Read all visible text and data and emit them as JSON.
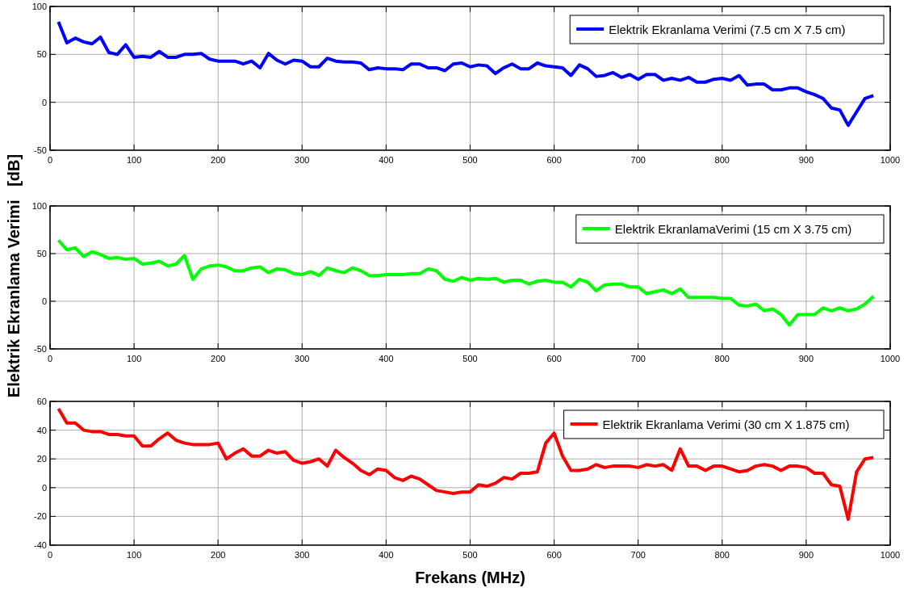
{
  "chart_data": [
    {
      "type": "line",
      "x": [
        10,
        20,
        30,
        40,
        50,
        60,
        70,
        80,
        90,
        100,
        110,
        120,
        130,
        140,
        150,
        160,
        170,
        180,
        190,
        200,
        210,
        220,
        230,
        240,
        250,
        260,
        270,
        280,
        290,
        300,
        310,
        320,
        330,
        340,
        350,
        360,
        370,
        380,
        390,
        400,
        410,
        420,
        430,
        440,
        450,
        460,
        470,
        480,
        490,
        500,
        510,
        520,
        530,
        540,
        550,
        560,
        570,
        580,
        590,
        600,
        610,
        620,
        630,
        640,
        650,
        660,
        670,
        680,
        690,
        700,
        710,
        720,
        730,
        740,
        750,
        760,
        770,
        780,
        790,
        800,
        810,
        820,
        830,
        840,
        850,
        860,
        870,
        880,
        890,
        900,
        910,
        920,
        930,
        940,
        950,
        960,
        970,
        980
      ],
      "series": [
        {
          "name": "Elektrik Ekranlama Verimi (7.5 cm X 7.5 cm)",
          "color": "#0000ff",
          "values": [
            84,
            62,
            67,
            63,
            61,
            68,
            52,
            50,
            60,
            47,
            48,
            47,
            53,
            47,
            47,
            50,
            50,
            51,
            45,
            43,
            43,
            43,
            40,
            43,
            36,
            51,
            44,
            40,
            44,
            43,
            37,
            37,
            46,
            43,
            42,
            42,
            41,
            34,
            36,
            35,
            35,
            34,
            40,
            40,
            36,
            36,
            33,
            40,
            41,
            37,
            39,
            38,
            30,
            36,
            40,
            35,
            35,
            41,
            38,
            37,
            36,
            28,
            39,
            35,
            27,
            28,
            31,
            26,
            29,
            24,
            29,
            29,
            23,
            25,
            23,
            26,
            21,
            21,
            24,
            25,
            23,
            28,
            18,
            19,
            19,
            13,
            13,
            15,
            15,
            11,
            8,
            4,
            -6,
            -8,
            -24,
            -10,
            4,
            7
          ]
        }
      ],
      "xlim": [
        0,
        1000
      ],
      "xticks": [
        0,
        100,
        200,
        300,
        400,
        500,
        600,
        700,
        800,
        900,
        1000
      ],
      "ylim": [
        -50,
        100
      ],
      "yticks": [
        -50,
        0,
        50,
        100
      ],
      "grid": true,
      "legend": "top right",
      "line_style": "solid"
    },
    {
      "type": "line",
      "ylabel": "Elektrik Ekranlama Verimi   [dB]",
      "x": [
        10,
        20,
        30,
        40,
        50,
        60,
        70,
        80,
        90,
        100,
        110,
        120,
        130,
        140,
        150,
        160,
        170,
        180,
        190,
        200,
        210,
        220,
        230,
        240,
        250,
        260,
        270,
        280,
        290,
        300,
        310,
        320,
        330,
        340,
        350,
        360,
        370,
        380,
        390,
        400,
        410,
        420,
        430,
        440,
        450,
        460,
        470,
        480,
        490,
        500,
        510,
        520,
        530,
        540,
        550,
        560,
        570,
        580,
        590,
        600,
        610,
        620,
        630,
        640,
        650,
        660,
        670,
        680,
        690,
        700,
        710,
        720,
        730,
        740,
        750,
        760,
        770,
        780,
        790,
        800,
        810,
        820,
        830,
        840,
        850,
        860,
        870,
        880,
        890,
        900,
        910,
        920,
        930,
        940,
        950,
        960,
        970,
        980
      ],
      "series": [
        {
          "name": "Elektrik EkranlamaVerimi (15 cm X 3.75 cm)",
          "color": "#00ff00",
          "values": [
            64,
            54,
            56,
            47,
            52,
            49,
            45,
            46,
            44,
            45,
            39,
            40,
            42,
            37,
            39,
            48,
            23,
            34,
            37,
            38,
            36,
            32,
            32,
            35,
            36,
            30,
            34,
            33,
            29,
            28,
            31,
            27,
            35,
            32,
            30,
            35,
            32,
            27,
            27,
            28,
            28,
            28,
            29,
            29,
            34,
            32,
            23,
            21,
            25,
            22,
            24,
            23,
            24,
            20,
            22,
            22,
            18,
            21,
            22,
            20,
            20,
            15,
            23,
            20,
            11,
            17,
            18,
            18,
            15,
            15,
            8,
            10,
            12,
            8,
            13,
            4,
            4,
            4,
            4,
            3,
            3,
            -4,
            -5,
            -3,
            -10,
            -8,
            -14,
            -25,
            -14,
            -14,
            -14,
            -7,
            -10,
            -7,
            -10,
            -8,
            -3,
            5
          ]
        }
      ],
      "xlim": [
        0,
        1000
      ],
      "xticks": [
        0,
        100,
        200,
        300,
        400,
        500,
        600,
        700,
        800,
        900,
        1000
      ],
      "ylim": [
        -50,
        100
      ],
      "yticks": [
        -50,
        0,
        50,
        100
      ],
      "grid": true,
      "legend": "top right",
      "line_style": "solid"
    },
    {
      "type": "line",
      "xlabel": "Frekans (MHz)",
      "x": [
        10,
        20,
        30,
        40,
        50,
        60,
        70,
        80,
        90,
        100,
        110,
        120,
        130,
        140,
        150,
        160,
        170,
        180,
        190,
        200,
        210,
        220,
        230,
        240,
        250,
        260,
        270,
        280,
        290,
        300,
        310,
        320,
        330,
        340,
        350,
        360,
        370,
        380,
        390,
        400,
        410,
        420,
        430,
        440,
        450,
        460,
        470,
        480,
        490,
        500,
        510,
        520,
        530,
        540,
        550,
        560,
        570,
        580,
        590,
        600,
        610,
        620,
        630,
        640,
        650,
        660,
        670,
        680,
        690,
        700,
        710,
        720,
        730,
        740,
        750,
        760,
        770,
        780,
        790,
        800,
        810,
        820,
        830,
        840,
        850,
        860,
        870,
        880,
        890,
        900,
        910,
        920,
        930,
        940,
        950,
        960,
        970,
        980
      ],
      "series": [
        {
          "name": "Elektrik Ekranlama Verimi (30 cm X 1.875 cm)",
          "color": "#ff0000",
          "values": [
            55,
            45,
            45,
            40,
            39,
            39,
            37,
            37,
            36,
            36,
            29,
            29,
            34,
            38,
            33,
            31,
            30,
            30,
            30,
            31,
            20,
            24,
            27,
            22,
            22,
            26,
            24,
            25,
            19,
            17,
            18,
            20,
            15,
            26,
            21,
            17,
            12,
            9,
            13,
            12,
            7,
            5,
            8,
            6,
            2,
            -2,
            -3,
            -4,
            -3,
            -3,
            2,
            1,
            3,
            7,
            6,
            10,
            10,
            11,
            31,
            38,
            22,
            12,
            12,
            13,
            16,
            14,
            15,
            15,
            15,
            14,
            16,
            15,
            16,
            12,
            27,
            15,
            15,
            12,
            15,
            15,
            13,
            11,
            12,
            15,
            16,
            15,
            12,
            15,
            15,
            14,
            10,
            10,
            2,
            1,
            -22,
            11,
            20,
            21
          ]
        }
      ],
      "xlim": [
        0,
        1000
      ],
      "xticks": [
        0,
        100,
        200,
        300,
        400,
        500,
        600,
        700,
        800,
        900,
        1000
      ],
      "ylim": [
        -40,
        60
      ],
      "yticks": [
        -40,
        -20,
        0,
        20,
        40,
        60
      ],
      "grid": true,
      "legend": "top right",
      "line_style": "solid"
    }
  ]
}
